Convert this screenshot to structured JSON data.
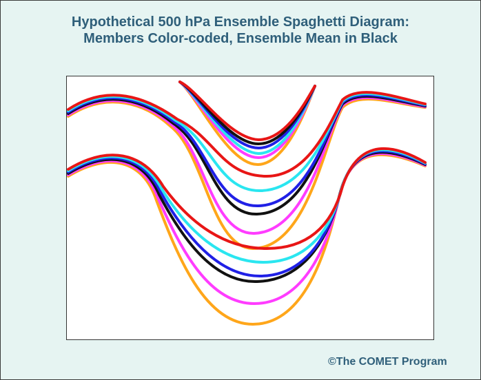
{
  "title": {
    "line1": "Hypothetical 500 hPa Ensemble Spaghetti Diagram:",
    "line2": "Members Color-coded, Ensemble Mean in Black"
  },
  "credit": "©The COMET Program",
  "colors": {
    "background": "#e6f4f2",
    "title_text": "#2f5f7a",
    "member_orange": "#ffa61a",
    "member_magenta": "#ff3cff",
    "member_cyan": "#2ae6f0",
    "member_blue": "#2020e6",
    "member_red": "#e81616",
    "ensemble_mean": "#111111"
  },
  "contours": [
    {
      "name": "upper-short-wave",
      "members": [
        "orange",
        "magenta",
        "cyan",
        "blue",
        "black",
        "red"
      ]
    },
    {
      "name": "middle-trough",
      "members": [
        "orange",
        "magenta",
        "black",
        "blue",
        "cyan",
        "red"
      ]
    },
    {
      "name": "lower-trough",
      "members": [
        "orange",
        "magenta",
        "black",
        "blue",
        "cyan",
        "red"
      ]
    }
  ]
}
